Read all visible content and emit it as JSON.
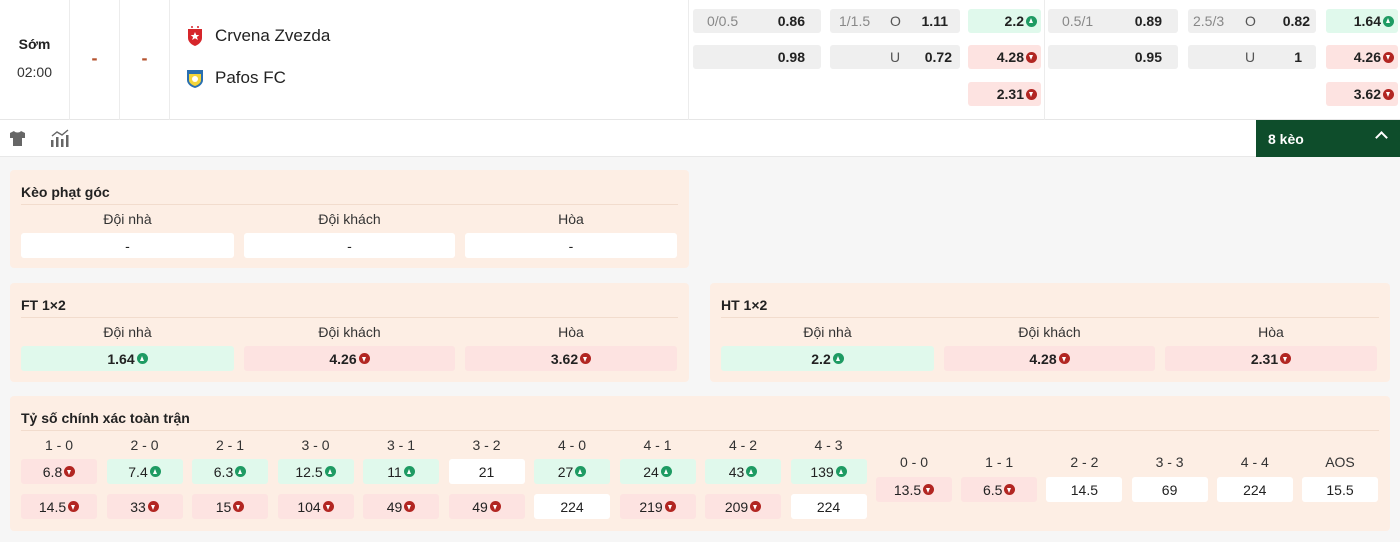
{
  "match": {
    "status": "Sớm",
    "time": "02:00",
    "score_home": "-",
    "score_away": "-",
    "home": "Crvena Zvezda",
    "away": "Pafos FC"
  },
  "odds": {
    "g1": {
      "hcp": {
        "line": "0/0.5",
        "home": "0.86",
        "away": "0.98"
      },
      "ou": {
        "line": "1/1.5",
        "over_label": "O",
        "over": "1.11",
        "under_label": "U",
        "under": "0.72"
      },
      "x12": [
        {
          "v": "2.2",
          "t": "up"
        },
        {
          "v": "4.28",
          "t": "down"
        },
        {
          "v": "2.31",
          "t": "down"
        }
      ]
    },
    "g2": {
      "hcp": {
        "line": "0.5/1",
        "home": "0.89",
        "away": "0.95"
      },
      "ou": {
        "line": "2.5/3",
        "over_label": "O",
        "over": "0.82",
        "under_label": "U",
        "under": "1"
      },
      "x12": [
        {
          "v": "1.64",
          "t": "up"
        },
        {
          "v": "4.26",
          "t": "down"
        },
        {
          "v": "3.62",
          "t": "down"
        }
      ]
    }
  },
  "toolbar": {
    "more_label": "8 kèo"
  },
  "corner": {
    "title": "Kèo phạt góc",
    "headers": [
      "Đội nhà",
      "Đội khách",
      "Hòa"
    ],
    "cells": [
      {
        "v": "-",
        "t": "none"
      },
      {
        "v": "-",
        "t": "none"
      },
      {
        "v": "-",
        "t": "none"
      }
    ]
  },
  "ft": {
    "title": "FT 1×2",
    "headers": [
      "Đội nhà",
      "Đội khách",
      "Hòa"
    ],
    "cells": [
      {
        "v": "1.64",
        "t": "up"
      },
      {
        "v": "4.26",
        "t": "down"
      },
      {
        "v": "3.62",
        "t": "down"
      }
    ]
  },
  "ht": {
    "title": "HT 1×2",
    "headers": [
      "Đội nhà",
      "Đội khách",
      "Hòa"
    ],
    "cells": [
      {
        "v": "2.2",
        "t": "up"
      },
      {
        "v": "4.28",
        "t": "down"
      },
      {
        "v": "2.31",
        "t": "down"
      }
    ]
  },
  "correct_score": {
    "title": "Tỷ số chính xác toàn trận",
    "pairs": [
      {
        "h": "1 - 0",
        "a": {
          "v": "6.8",
          "t": "down"
        },
        "b": {
          "v": "14.5",
          "t": "down"
        }
      },
      {
        "h": "2 - 0",
        "a": {
          "v": "7.4",
          "t": "up"
        },
        "b": {
          "v": "33",
          "t": "down"
        }
      },
      {
        "h": "2 - 1",
        "a": {
          "v": "6.3",
          "t": "up"
        },
        "b": {
          "v": "15",
          "t": "down"
        }
      },
      {
        "h": "3 - 0",
        "a": {
          "v": "12.5",
          "t": "up"
        },
        "b": {
          "v": "104",
          "t": "down"
        }
      },
      {
        "h": "3 - 1",
        "a": {
          "v": "11",
          "t": "up"
        },
        "b": {
          "v": "49",
          "t": "down"
        }
      },
      {
        "h": "3 - 2",
        "a": {
          "v": "21",
          "t": "none"
        },
        "b": {
          "v": "49",
          "t": "down"
        }
      },
      {
        "h": "4 - 0",
        "a": {
          "v": "27",
          "t": "up"
        },
        "b": {
          "v": "224",
          "t": "none"
        }
      },
      {
        "h": "4 - 1",
        "a": {
          "v": "24",
          "t": "up"
        },
        "b": {
          "v": "219",
          "t": "down"
        }
      },
      {
        "h": "4 - 2",
        "a": {
          "v": "43",
          "t": "up"
        },
        "b": {
          "v": "209",
          "t": "down"
        }
      },
      {
        "h": "4 - 3",
        "a": {
          "v": "139",
          "t": "up"
        },
        "b": {
          "v": "224",
          "t": "none"
        }
      }
    ],
    "draws": [
      {
        "h": "0 - 0",
        "a": {
          "v": "13.5",
          "t": "down"
        }
      },
      {
        "h": "1 - 1",
        "a": {
          "v": "6.5",
          "t": "down"
        }
      },
      {
        "h": "2 - 2",
        "a": {
          "v": "14.5",
          "t": "none"
        }
      },
      {
        "h": "3 - 3",
        "a": {
          "v": "69",
          "t": "none"
        }
      },
      {
        "h": "4 - 4",
        "a": {
          "v": "224",
          "t": "none"
        }
      },
      {
        "h": "AOS",
        "a": {
          "v": "15.5",
          "t": "none"
        }
      }
    ]
  }
}
